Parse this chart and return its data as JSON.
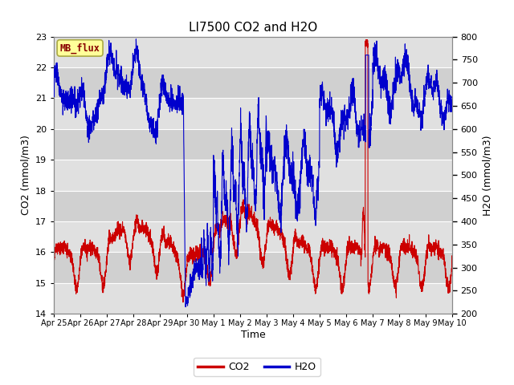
{
  "title": "LI7500 CO2 and H2O",
  "xlabel": "Time",
  "ylabel_left": "CO2 (mmol/m3)",
  "ylabel_right": "H2O (mmol/m3)",
  "ylim_left": [
    14.0,
    23.0
  ],
  "ylim_right": [
    200,
    800
  ],
  "yticks_left": [
    14.0,
    15.0,
    16.0,
    17.0,
    18.0,
    19.0,
    20.0,
    21.0,
    22.0,
    23.0
  ],
  "yticks_right": [
    200,
    250,
    300,
    350,
    400,
    450,
    500,
    550,
    600,
    650,
    700,
    750,
    800
  ],
  "co2_color": "#cc0000",
  "h2o_color": "#0000cc",
  "fig_bg": "#ffffff",
  "plot_bg": "#f0f0f0",
  "band_colors": [
    "#e8e8e8",
    "#d8d8d8"
  ],
  "grid_line_color": "#e0e0e0",
  "annotation_text": "MB_flux",
  "annotation_bg": "#ffff99",
  "annotation_border": "#aaaa44",
  "annotation_fg": "#880000",
  "linewidth": 0.8,
  "xtick_labels": [
    "Apr 25",
    "Apr 26",
    "Apr 27",
    "Apr 28",
    "Apr 29",
    "Apr 30",
    "May 1",
    "May 2",
    "May 3",
    "May 4",
    "May 5",
    "May 6",
    "May 7",
    "May 8",
    "May 9",
    "May 10"
  ],
  "n_days": 15,
  "n_points": 3000
}
